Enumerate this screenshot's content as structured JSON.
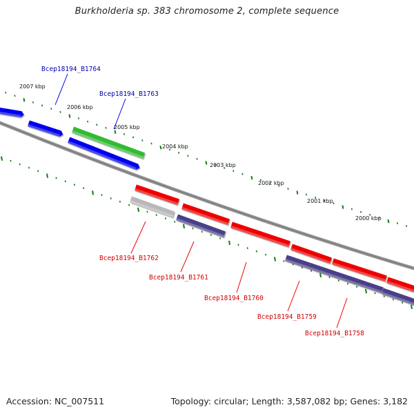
{
  "title": "Burkholderia sp. 383 chromosome 2, complete sequence",
  "footer": {
    "accession": "Accession: NC_007511",
    "topology": "Topology: circular; Length: 3,587,082 bp; Genes: 3,182"
  },
  "colors": {
    "forward_cds": "#0000ee",
    "forward_feature": "#33bb33",
    "reverse_cds": "#ee0000",
    "reverse_pseudo": "#b8b8b8",
    "reverse_feature": "#4a3f8a",
    "backbone": "#808080",
    "ticks": "#127a12"
  },
  "scale_labels": [
    "2007 kbp",
    "2006 kbp",
    "2005 kbp",
    "2004 kbp",
    "2003 kbp",
    "2002 kbp",
    "2001 kbp",
    "2000 kbp"
  ],
  "gene_labels": {
    "forward": [
      "Bcep18194_B1764",
      "Bcep18194_B1763"
    ],
    "reverse": [
      "Bcep18194_B1762",
      "Bcep18194_B1761",
      "Bcep18194_B1760",
      "Bcep18194_B1759",
      "Bcep18194_B1758"
    ]
  }
}
